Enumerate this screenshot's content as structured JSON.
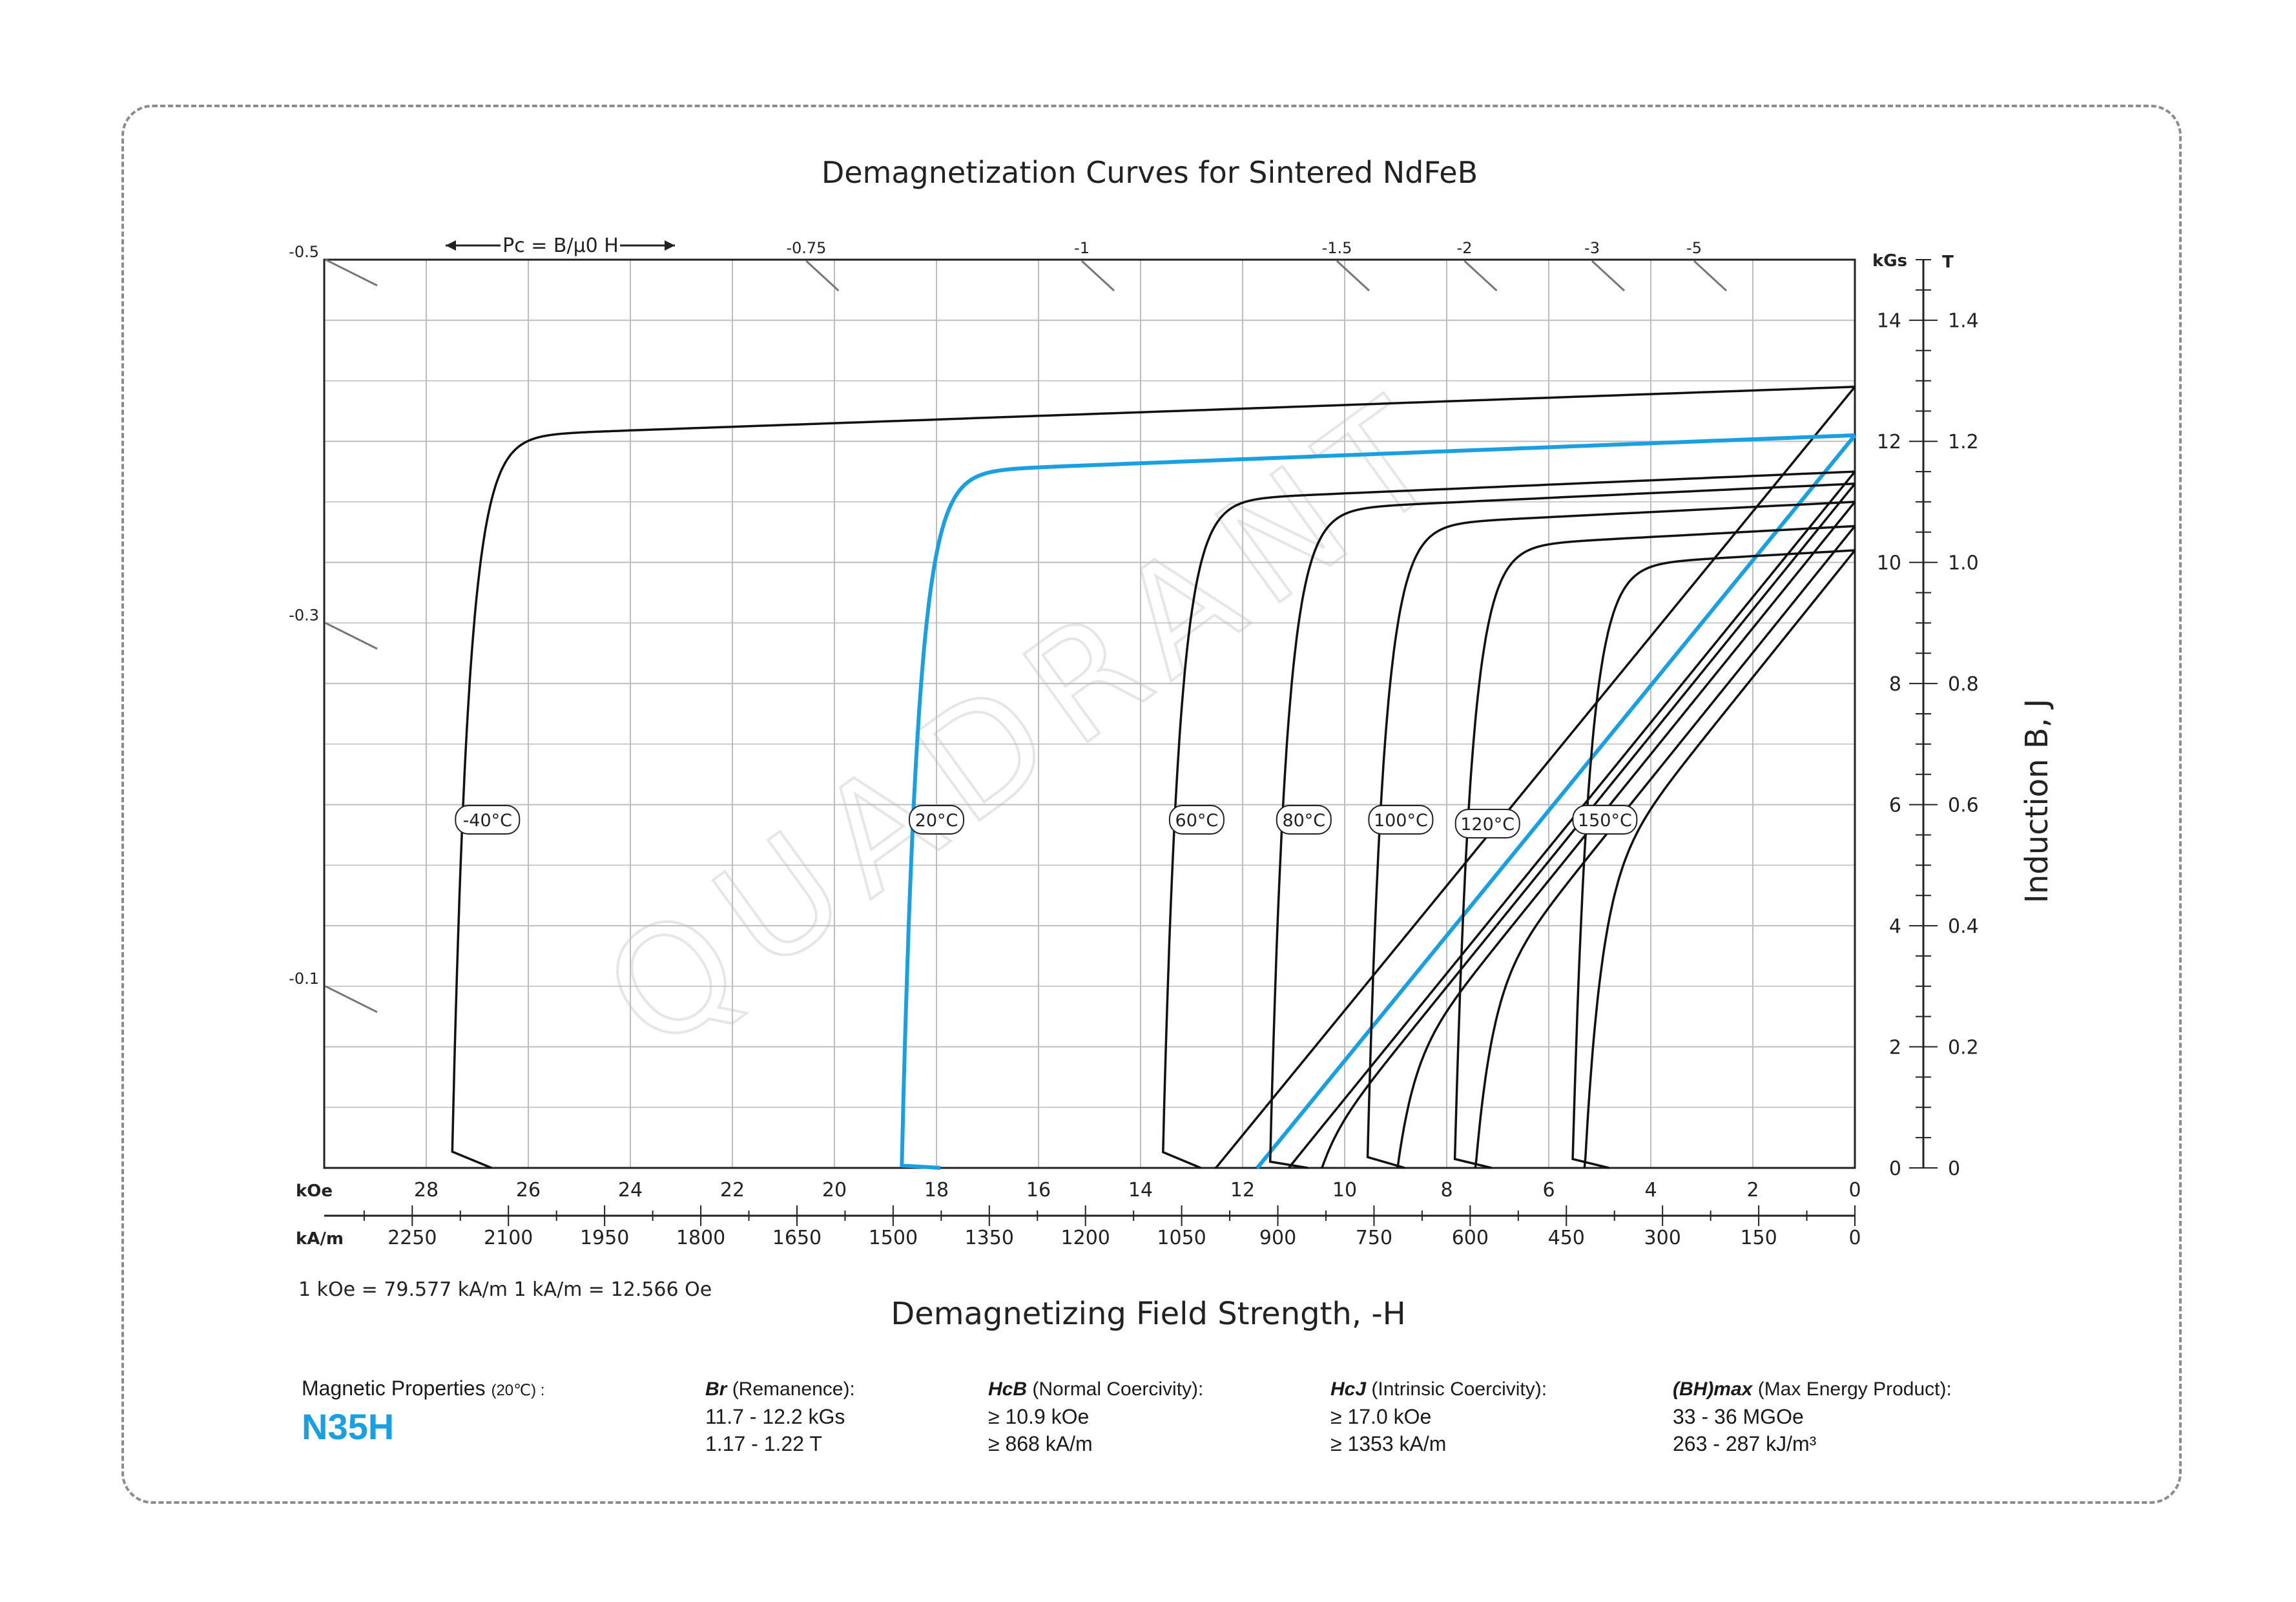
{
  "title": "Demagnetization Curves for Sintered NdFeB",
  "pc_label": "Pc = B/μ0 H",
  "conversion_note": "1 kOe = 79.577 kA/m   1 kA/m = 12.566 Oe",
  "x_axis_title": "Demagnetizing Field Strength, -H",
  "y_axis_title": "Induction B, J",
  "colors": {
    "highlight": "#1a9fe0",
    "curve": "#111111",
    "grid": "#bdbdbd",
    "watermark": "#e6e6e6"
  },
  "watermark": "QUADRANT",
  "properties": {
    "heading": "Magnetic Properties",
    "heading_note": "(20℃) :",
    "grade": "N35H",
    "br": {
      "symbol": "Br",
      "label": "(Remanence):",
      "values": [
        "11.7 - 12.2 kGs",
        "1.17 - 1.22 T"
      ]
    },
    "hcb": {
      "symbol": "HcB",
      "label": "(Normal Coercivity):",
      "values": [
        "≥ 10.9 kOe",
        "≥ 868 kA/m"
      ]
    },
    "hcj": {
      "symbol": "HcJ",
      "label": "(Intrinsic Coercivity):",
      "values": [
        "≥ 17.0 kOe",
        "≥ 1353 kA/m"
      ]
    },
    "bh": {
      "symbol": "(BH)max",
      "label": "(Max Energy Product):",
      "values": [
        "33 - 36 MGOe",
        "263 - 287 kJ/m³"
      ]
    }
  },
  "chart_data": {
    "type": "line",
    "title": "Demagnetization Curves for Sintered NdFeB",
    "xlabel": "Demagnetizing Field Strength, -H",
    "ylabel": "Induction B, J",
    "x_unit_primary": "kOe",
    "x_unit_secondary": "kA/m",
    "y_unit_primary": "kGs",
    "y_unit_secondary": "T",
    "xlim": [
      30,
      0
    ],
    "ylim": [
      0,
      15
    ],
    "x_ticks_koe": [
      "28",
      "26",
      "24",
      "22",
      "20",
      "18",
      "16",
      "14",
      "12",
      "10",
      "8",
      "6",
      "4",
      "2",
      "0"
    ],
    "x_ticks_kam": [
      "2250",
      "2100",
      "1950",
      "1800",
      "1650",
      "1500",
      "1350",
      "1200",
      "1050",
      "900",
      "750",
      "600",
      "450",
      "300",
      "150",
      "0"
    ],
    "y_ticks_kgs": [
      "0",
      "2",
      "4",
      "6",
      "8",
      "10",
      "12",
      "14"
    ],
    "y_ticks_t": [
      "0",
      "0.2",
      "0.4",
      "0.6",
      "0.8",
      "1.0",
      "1.2",
      "1.4"
    ],
    "pc_ticks": [
      {
        "label": "-0.5",
        "side": "left"
      },
      {
        "label": "-0.3",
        "side": "left"
      },
      {
        "label": "-0.1",
        "side": "left"
      },
      {
        "label": "-0.75",
        "side": "top"
      },
      {
        "label": "-1",
        "side": "top"
      },
      {
        "label": "-1.5",
        "side": "top"
      },
      {
        "label": "-2",
        "side": "top"
      },
      {
        "label": "-3",
        "side": "top"
      },
      {
        "label": "-5",
        "side": "top"
      }
    ],
    "grid": true,
    "series": [
      {
        "name": "-40°C",
        "br": 12.9,
        "hcj": 26.7,
        "hcb": 13.0,
        "highlight": false
      },
      {
        "name": "20°C",
        "br": 12.1,
        "hcj": 17.9,
        "hcb": 11.7,
        "highlight": true
      },
      {
        "name": "60°C",
        "br": 11.5,
        "hcj": 12.8,
        "hcb": 11.1,
        "highlight": false
      },
      {
        "name": "80°C",
        "br": 11.3,
        "hcj": 10.7,
        "hcb": 10.6,
        "highlight": false
      },
      {
        "name": "100°C",
        "br": 11.0,
        "hcj": 8.8,
        "hcb": 10.0,
        "highlight": false
      },
      {
        "name": "120°C",
        "br": 10.6,
        "hcj": 7.1,
        "hcb": 8.9,
        "highlight": false
      },
      {
        "name": "150°C",
        "br": 10.2,
        "hcj": 4.8,
        "hcb": 4.8,
        "highlight": false
      }
    ]
  }
}
